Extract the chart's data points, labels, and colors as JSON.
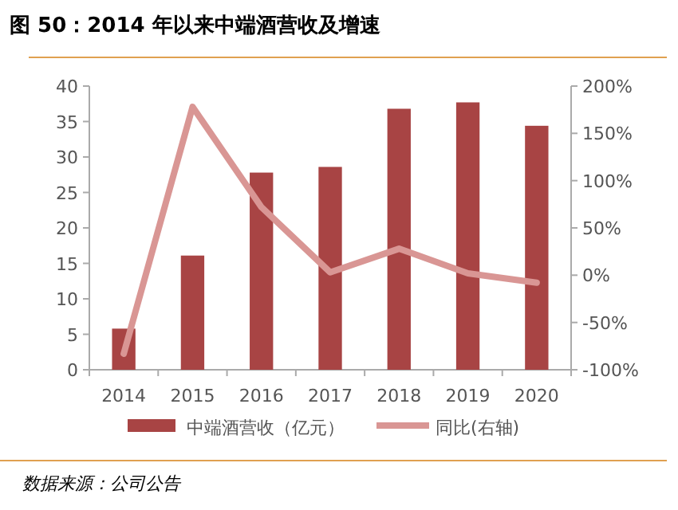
{
  "chart_data": {
    "type": "bar",
    "title": "图 50：2014 年以来中端酒营收及增速",
    "categories": [
      "2014",
      "2015",
      "2016",
      "2017",
      "2018",
      "2019",
      "2020"
    ],
    "series": [
      {
        "name": "中端酒营收（亿元）",
        "color": "#a84444",
        "values": [
          5.8,
          16.1,
          27.8,
          28.6,
          36.8,
          37.7,
          34.4
        ]
      },
      {
        "name": "同比(右轴)",
        "type": "line",
        "axis": "y2",
        "color": "#d99694",
        "values": [
          -83,
          178,
          72,
          3,
          28,
          2,
          -8
        ]
      }
    ],
    "ylim": [
      0,
      40
    ],
    "yticks": [
      0,
      5,
      10,
      15,
      20,
      25,
      30,
      35,
      40
    ],
    "y2lim": [
      -100,
      200
    ],
    "y2ticks": [
      {
        "value": -100,
        "label": "-100%"
      },
      {
        "value": -50,
        "label": "-50%"
      },
      {
        "value": 0,
        "label": "0%"
      },
      {
        "value": 50,
        "label": "50%"
      },
      {
        "value": 100,
        "label": "100%"
      },
      {
        "value": 150,
        "label": "150%"
      },
      {
        "value": 200,
        "label": "200%"
      }
    ],
    "legend": "bottom",
    "grid": false,
    "annotations": [
      "数据来源：公司公告"
    ]
  }
}
